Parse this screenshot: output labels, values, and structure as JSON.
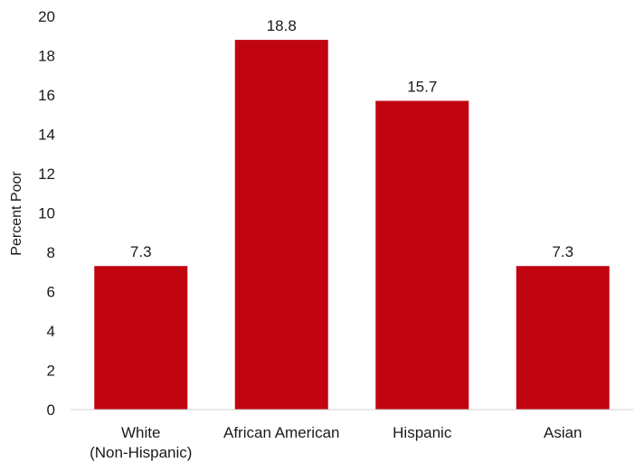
{
  "chart_data": {
    "type": "bar",
    "title": "",
    "xlabel": "",
    "ylabel": "Percent Poor",
    "ylim": [
      0,
      20
    ],
    "yticks": [
      0,
      2,
      4,
      6,
      8,
      10,
      12,
      14,
      16,
      18,
      20
    ],
    "categories": [
      "White (Non-Hispanic)",
      "African American",
      "Hispanic",
      "Asian"
    ],
    "category_label_lines": [
      [
        "White",
        "(Non-Hispanic)"
      ],
      [
        "African American"
      ],
      [
        "Hispanic"
      ],
      [
        "Asian"
      ]
    ],
    "values": [
      7.3,
      18.8,
      15.7,
      7.3
    ],
    "value_labels": [
      "7.3",
      "18.8",
      "15.7",
      "7.3"
    ],
    "bar_color": "#c00510",
    "grid": false,
    "legend": "none"
  }
}
